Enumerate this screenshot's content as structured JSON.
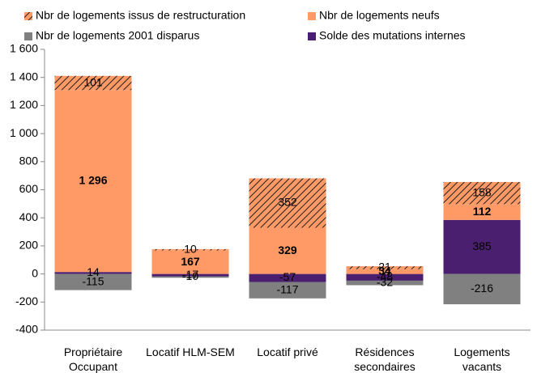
{
  "chart_data": {
    "type": "stacked-bar",
    "categories": [
      "Propriétaire Occupant",
      "Locatif  HLM-SEM",
      "Locatif privé",
      "Résidences secondaires",
      "Logements vacants"
    ],
    "series": [
      {
        "name": "Nbr de logements issus de restructuration",
        "color": "#ff9966",
        "hatch": true,
        "values": [
          101,
          10,
          352,
          21,
          158
        ]
      },
      {
        "name": "Nbr de  logements neufs",
        "color": "#ff9966",
        "values": [
          1296,
          167,
          329,
          34,
          112
        ],
        "value_labels": [
          "1 296",
          "167",
          "329",
          "34",
          "112"
        ]
      },
      {
        "name": "Nbr de logements 2001 disparus",
        "color": "#808080",
        "values": [
          -115,
          -10,
          -117,
          -32,
          -216
        ]
      },
      {
        "name": "Solde des mutations internes",
        "color": "#4b1f6f",
        "values": [
          14,
          -17,
          -57,
          -48,
          385
        ]
      }
    ],
    "ylim": [
      -400,
      1600
    ],
    "yticks": [
      -400,
      -200,
      0,
      200,
      400,
      600,
      800,
      {
        "value": 1000,
        "label": "1 000"
      },
      {
        "value": 1200,
        "label": "1 200"
      },
      {
        "value": 1400,
        "label": "1 400"
      },
      {
        "value": 1600,
        "label": "1 600"
      }
    ],
    "grid": false
  }
}
